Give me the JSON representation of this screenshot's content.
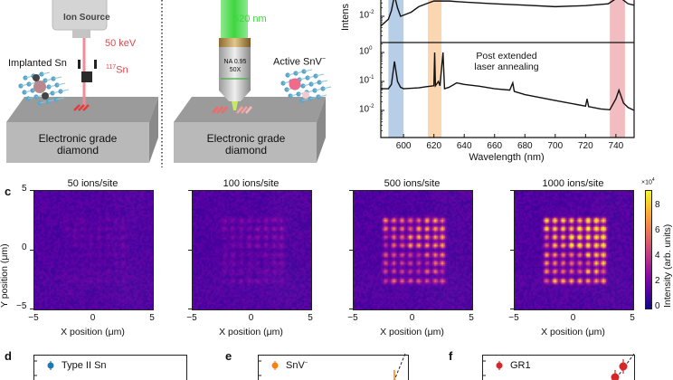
{
  "schematic_left": {
    "ion_source": "Ion Source",
    "energy": "50 keV",
    "isotope_sup": "117",
    "isotope": "Sn",
    "implanted": "Implanted Sn",
    "substrate_line1": "Electronic grade",
    "substrate_line2": "diamond"
  },
  "schematic_right": {
    "laser": "520 nm",
    "objective_na": "NA 0.95",
    "objective_mag": "50X",
    "active": "Active SnV",
    "active_sup": "−",
    "substrate_line1": "Electronic grade",
    "substrate_line2": "diamond"
  },
  "colors": {
    "blue_band": "#a9c6e3",
    "orange_band": "#f9cfa3",
    "red_band": "#eeb2b5",
    "laser_green": "#3fd63f",
    "label_red": "#e0474c",
    "type2": "#1f77b4",
    "snv": "#ff7f0e",
    "gr1": "#d62728"
  },
  "chart_data": [
    {
      "type": "line",
      "panel": "b",
      "ylabel": "Intens",
      "xlabel": "Wavelength (nm)",
      "xlim": [
        585,
        752
      ],
      "xticks": [
        "600",
        "620",
        "640",
        "660",
        "680",
        "700",
        "720",
        "740"
      ],
      "yscale": "log",
      "annotation": "Post extended laser annealing",
      "annotation_line1": "Post extended",
      "annotation_line2": "laser annealing",
      "bands_nm": [
        [
          590,
          600
        ],
        [
          616,
          625
        ],
        [
          736,
          746
        ]
      ],
      "top": {
        "yticks": [
          "10",
          "-2"
        ],
        "ylim": [
          0.00115,
          0.038
        ],
        "x": [
          585,
          588,
          590,
          592,
          594,
          596,
          598,
          600,
          605,
          610,
          615,
          620,
          630,
          640,
          660,
          680,
          700,
          720,
          735,
          742,
          748,
          752
        ],
        "y": [
          0.0045,
          0.0063,
          0.0079,
          0.016,
          0.063,
          0.02,
          0.01,
          0.011,
          0.014,
          0.022,
          0.028,
          0.035,
          0.035,
          0.032,
          0.028,
          0.025,
          0.022,
          0.024,
          0.028,
          0.05,
          0.028,
          0.025
        ]
      },
      "bottom": {
        "yticks": [
          [
            "10",
            "0"
          ],
          [
            "10",
            "-1"
          ],
          [
            "10",
            "-2"
          ]
        ],
        "ylim": [
          0.00115,
          2.2
        ],
        "x": [
          585,
          590,
          592,
          594,
          596,
          598,
          600,
          610,
          615,
          620,
          620.5,
          621,
          623,
          624,
          626,
          627,
          630,
          635,
          640,
          650,
          660,
          670,
          672,
          673,
          680,
          700,
          720,
          721,
          722,
          730,
          736,
          740,
          742,
          745,
          748,
          752
        ],
        "y": [
          0.056,
          0.056,
          0.079,
          0.49,
          0.1,
          0.063,
          0.056,
          0.06,
          0.066,
          0.071,
          1.0,
          0.071,
          0.1,
          0.071,
          1.0,
          0.056,
          0.063,
          0.089,
          0.079,
          0.068,
          0.056,
          0.05,
          0.089,
          0.045,
          0.035,
          0.022,
          0.014,
          0.025,
          0.0135,
          0.0112,
          0.0105,
          0.025,
          0.05,
          0.018,
          0.0126,
          0.01
        ]
      }
    },
    {
      "type": "heatmap",
      "panel": "c",
      "maps": [
        {
          "title": "50 ions/site",
          "spot_peak": 0.5
        },
        {
          "title": "100 ions/site",
          "spot_peak": 1.2
        },
        {
          "title": "500 ions/site",
          "spot_peak": 5.5
        },
        {
          "title": "1000 ions/site",
          "spot_peak": 8.5
        }
      ],
      "background": 1.3,
      "spot_x_um": [
        -2.3,
        -1.6,
        -0.9,
        -0.2,
        0.5,
        1.2,
        1.9,
        2.5
      ],
      "spot_y_um": [
        2.5,
        1.8,
        1.1,
        0.4,
        -0.4,
        -1.1,
        -1.8,
        -2.6
      ],
      "xlabel": "X position (μm)",
      "ylabel": "Y position (μm)",
      "xticks": [
        "−5",
        "0",
        "5"
      ],
      "yticks": [
        "5",
        "0",
        "−5"
      ],
      "xlim": [
        -5,
        5
      ],
      "ylim": [
        -5,
        5
      ],
      "colorbar": {
        "label": "Intensity (arb. units)",
        "scale": "×10",
        "scale_sup": "4",
        "ticks": [
          "0",
          "2",
          "4",
          "6",
          "8"
        ],
        "range": [
          0,
          9.3
        ],
        "colormap": "plasma"
      }
    },
    {
      "type": "scatter",
      "panel": "d",
      "legend": "Type II Sn"
    },
    {
      "type": "scatter",
      "panel": "e",
      "legend": "SnV",
      "legend_sup": "−"
    },
    {
      "type": "scatter",
      "panel": "f",
      "legend": "GR1"
    }
  ],
  "panel_labels": {
    "c": "c",
    "d": "d",
    "e": "e",
    "f": "f"
  }
}
